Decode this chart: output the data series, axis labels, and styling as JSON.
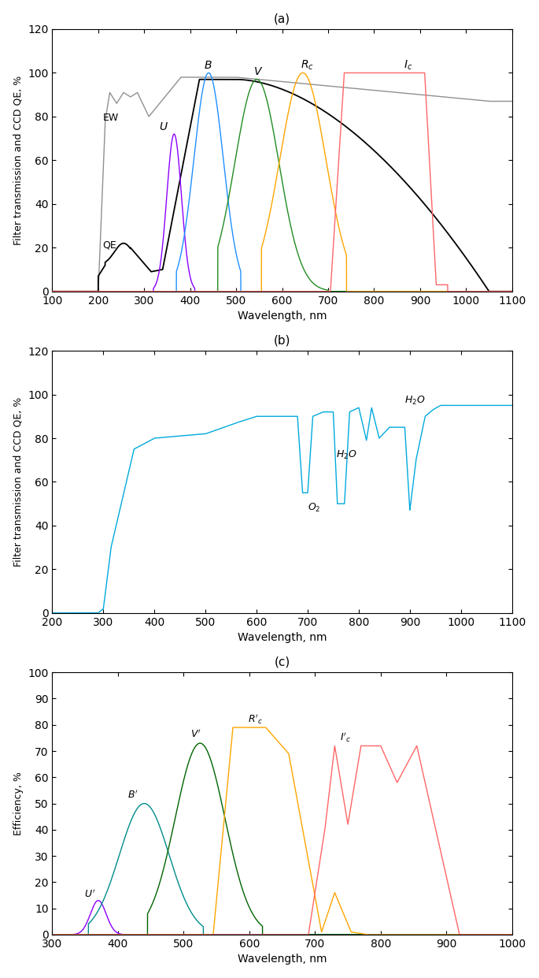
{
  "panel_a": {
    "title": "(a)",
    "xlabel": "Wavelength, nm",
    "ylabel": "Filter transmission and CCD QE, %",
    "xlim": [
      100,
      1100
    ],
    "ylim": [
      0,
      120
    ],
    "yticks": [
      0,
      20,
      40,
      60,
      80,
      100,
      120
    ],
    "xticks": [
      100,
      200,
      300,
      400,
      500,
      600,
      700,
      800,
      900,
      1000,
      1100
    ]
  },
  "panel_b": {
    "title": "(b)",
    "xlabel": "Wavelength, nm",
    "ylabel": "Filter transmission and CCD QE, %",
    "xlim": [
      200,
      1100
    ],
    "ylim": [
      0,
      120
    ],
    "yticks": [
      0,
      20,
      40,
      60,
      80,
      100,
      120
    ],
    "xticks": [
      200,
      300,
      400,
      500,
      600,
      700,
      800,
      900,
      1000,
      1100
    ]
  },
  "panel_c": {
    "title": "(c)",
    "xlabel": "Wavelength, nm",
    "ylabel": "Efficiency, %",
    "xlim": [
      300,
      1000
    ],
    "ylim": [
      0,
      100
    ],
    "yticks": [
      0,
      10,
      20,
      30,
      40,
      50,
      60,
      70,
      80,
      90,
      100
    ],
    "xticks": [
      300,
      400,
      500,
      600,
      700,
      800,
      900,
      1000
    ]
  },
  "colors": {
    "EW": "#909090",
    "QE": "#000000",
    "U": "#8B00FF",
    "B": "#1E90FF",
    "V_green": "#228B22",
    "Rc": "#FFA500",
    "Ic": "#FF6666",
    "sky": "#00AADD",
    "Up": "#8B00FF",
    "Bp": "#008B8B",
    "Vp": "#006400",
    "Rcp": "#FFA500",
    "Icp": "#FF6666"
  }
}
